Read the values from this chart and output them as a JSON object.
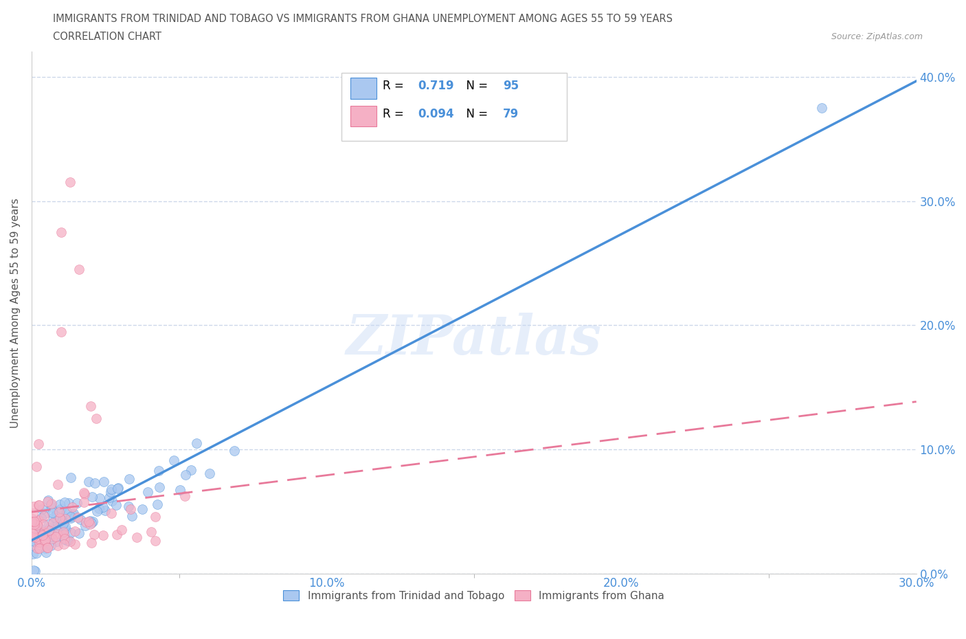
{
  "title_line1": "IMMIGRANTS FROM TRINIDAD AND TOBAGO VS IMMIGRANTS FROM GHANA UNEMPLOYMENT AMONG AGES 55 TO 59 YEARS",
  "title_line2": "CORRELATION CHART",
  "source": "Source: ZipAtlas.com",
  "ylabel": "Unemployment Among Ages 55 to 59 years",
  "watermark": "ZIPatlas",
  "series1_name": "Immigrants from Trinidad and Tobago",
  "series2_name": "Immigrants from Ghana",
  "series1_R": "0.719",
  "series1_N": "95",
  "series2_R": "0.094",
  "series2_N": "79",
  "series1_color": "#aac8f0",
  "series2_color": "#f5b0c5",
  "line1_color": "#4a90d9",
  "line2_color": "#e8799a",
  "xlim": [
    0,
    0.3
  ],
  "ylim": [
    0,
    0.42
  ],
  "xticks": [
    0.0,
    0.1,
    0.2,
    0.3
  ],
  "yticks": [
    0.0,
    0.1,
    0.2,
    0.3,
    0.4
  ],
  "background_color": "#ffffff",
  "grid_color": "#c8d4e8",
  "title_color": "#555555",
  "axis_label_color": "#555555",
  "tick_label_color": "#4a90d9"
}
